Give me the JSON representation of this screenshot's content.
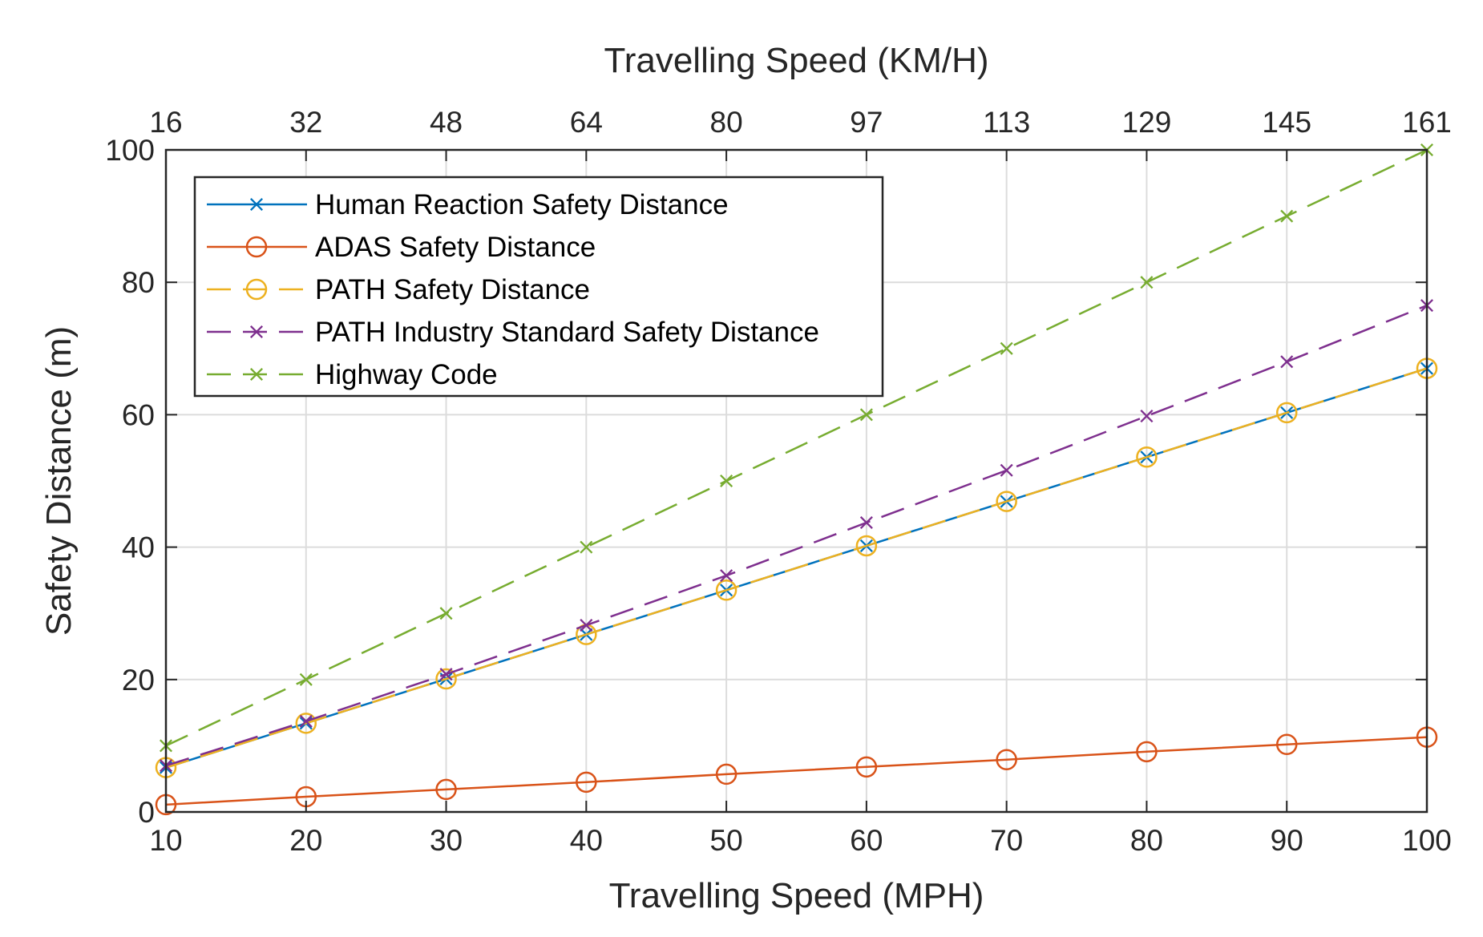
{
  "chart_data": {
    "type": "line",
    "x": [
      10,
      20,
      30,
      40,
      50,
      60,
      70,
      80,
      90,
      100
    ],
    "xlabel": "Travelling Speed (MPH)",
    "ylabel": "Safety Distance (m)",
    "xlim": [
      10,
      100
    ],
    "ylim": [
      0,
      100
    ],
    "xticks": [
      "10",
      "20",
      "30",
      "40",
      "50",
      "60",
      "70",
      "80",
      "90",
      "100"
    ],
    "yticks": [
      "0",
      "20",
      "40",
      "60",
      "80",
      "100"
    ],
    "top_axis": {
      "label": "Travelling Speed (KM/H)",
      "ticks": [
        "16",
        "32",
        "48",
        "64",
        "80",
        "97",
        "113",
        "129",
        "145",
        "161"
      ]
    },
    "grid": true,
    "legend_position": "top-left",
    "series": [
      {
        "name": "Human Reaction Safety Distance",
        "color": "#0072BD",
        "dash": "solid",
        "marker": "x",
        "values": [
          6.7,
          13.4,
          20.1,
          26.8,
          33.5,
          40.2,
          46.9,
          53.6,
          60.3,
          67.0
        ]
      },
      {
        "name": "ADAS Safety Distance",
        "color": "#D95319",
        "dash": "solid",
        "marker": "o",
        "values": [
          1.1,
          2.3,
          3.4,
          4.5,
          5.7,
          6.8,
          7.9,
          9.1,
          10.2,
          11.3
        ]
      },
      {
        "name": "PATH Safety Distance",
        "color": "#EDB120",
        "dash": "dashed",
        "marker": "o",
        "values": [
          6.7,
          13.4,
          20.1,
          26.8,
          33.5,
          40.2,
          46.9,
          53.6,
          60.3,
          67.0
        ]
      },
      {
        "name": "PATH Industry Standard Safety Distance",
        "color": "#7E2F8E",
        "dash": "dashed",
        "marker": "x",
        "values": [
          7.0,
          13.7,
          20.8,
          28.2,
          35.7,
          43.7,
          51.6,
          59.8,
          68.0,
          76.5
        ]
      },
      {
        "name": "Highway Code",
        "color": "#77AC30",
        "dash": "dashed",
        "marker": "x",
        "values": [
          10,
          20,
          30,
          40,
          50,
          60,
          70,
          80,
          90,
          100
        ]
      }
    ]
  }
}
